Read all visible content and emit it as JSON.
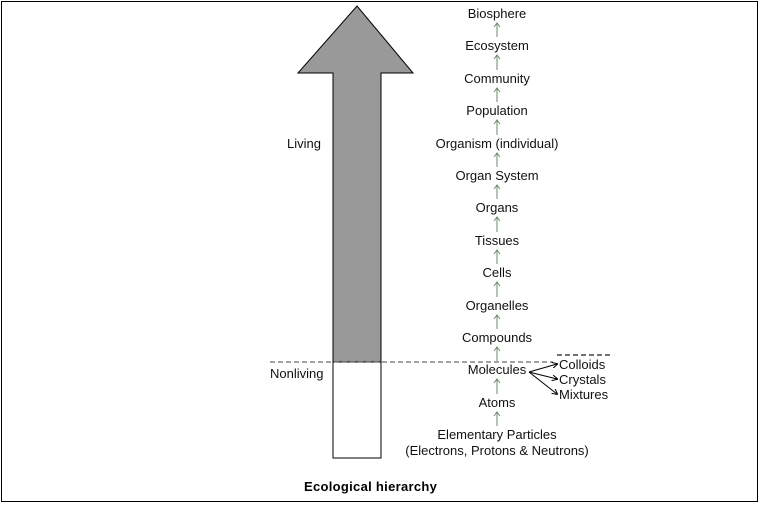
{
  "levels": [
    "Biosphere",
    "Ecosystem",
    "Community",
    "Population",
    "Organism (individual)",
    "Organ System",
    "Organs",
    "Tissues",
    "Cells",
    "Organelles",
    "Compounds",
    "Molecules",
    "Atoms"
  ],
  "base": {
    "line1": "Elementary Particles",
    "line2": "(Electrons, Protons & Neutrons)"
  },
  "molecule_products": [
    "Colloids",
    "Crystals",
    "Mixtures"
  ],
  "labels": {
    "living": "Living",
    "nonliving": "Nonliving"
  },
  "caption": "Ecological hierarchy",
  "colors": {
    "arrow_fill": "#999999",
    "nonliving_fill": "#ffffff",
    "connector": "#6d8a6d"
  }
}
